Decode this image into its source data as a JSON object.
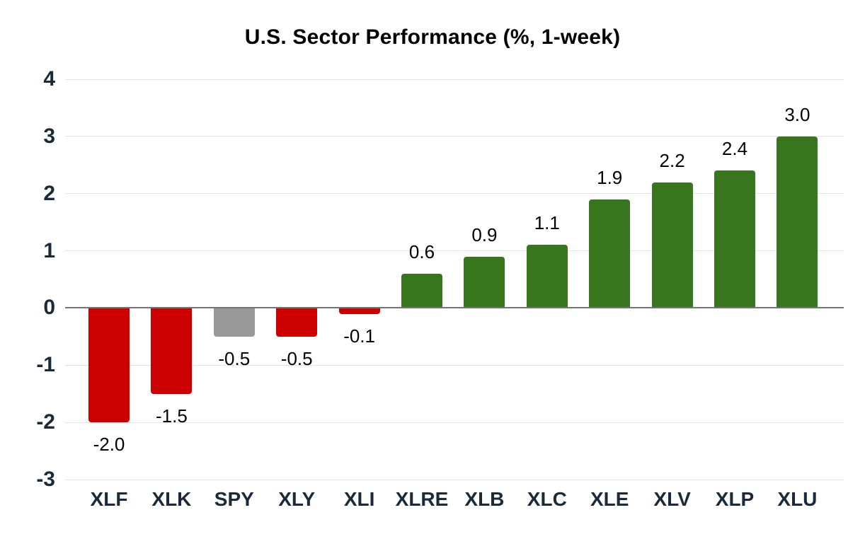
{
  "title": "U.S. Sector Performance (%, 1-week)",
  "chart_data": {
    "type": "bar",
    "title": "U.S. Sector Performance (%, 1-week)",
    "categories": [
      "XLF",
      "XLK",
      "SPY",
      "XLY",
      "XLI",
      "XLRE",
      "XLB",
      "XLC",
      "XLE",
      "XLV",
      "XLP",
      "XLU"
    ],
    "values": [
      -2.0,
      -1.5,
      -0.5,
      -0.5,
      -0.1,
      0.6,
      0.9,
      1.1,
      1.9,
      2.2,
      2.4,
      3.0
    ],
    "value_labels": [
      "-2.0",
      "-1.5",
      "-0.5",
      "-0.5",
      "-0.1",
      "0.6",
      "0.9",
      "1.1",
      "1.9",
      "2.2",
      "2.4",
      "3.0"
    ],
    "bar_colors": [
      "#cc0000",
      "#cc0000",
      "#999999",
      "#cc0000",
      "#cc0000",
      "#38761d",
      "#38761d",
      "#38761d",
      "#38761d",
      "#38761d",
      "#38761d",
      "#38761d"
    ],
    "xlabel": "",
    "ylabel": "",
    "yticks": [
      4,
      3,
      2,
      1,
      0,
      -1,
      -2,
      -3
    ],
    "ylim": [
      -3,
      4
    ],
    "grid": "horizontal",
    "legend": "none",
    "colors": {
      "negative": "#cc0000",
      "positive": "#38761d",
      "benchmark": "#999999",
      "gridline": "#e3e3e3",
      "zero_line": "#757575",
      "axis_label": "#1b2a3b",
      "value_label": "#000000",
      "title": "#000000",
      "background": "#ffffff"
    }
  }
}
